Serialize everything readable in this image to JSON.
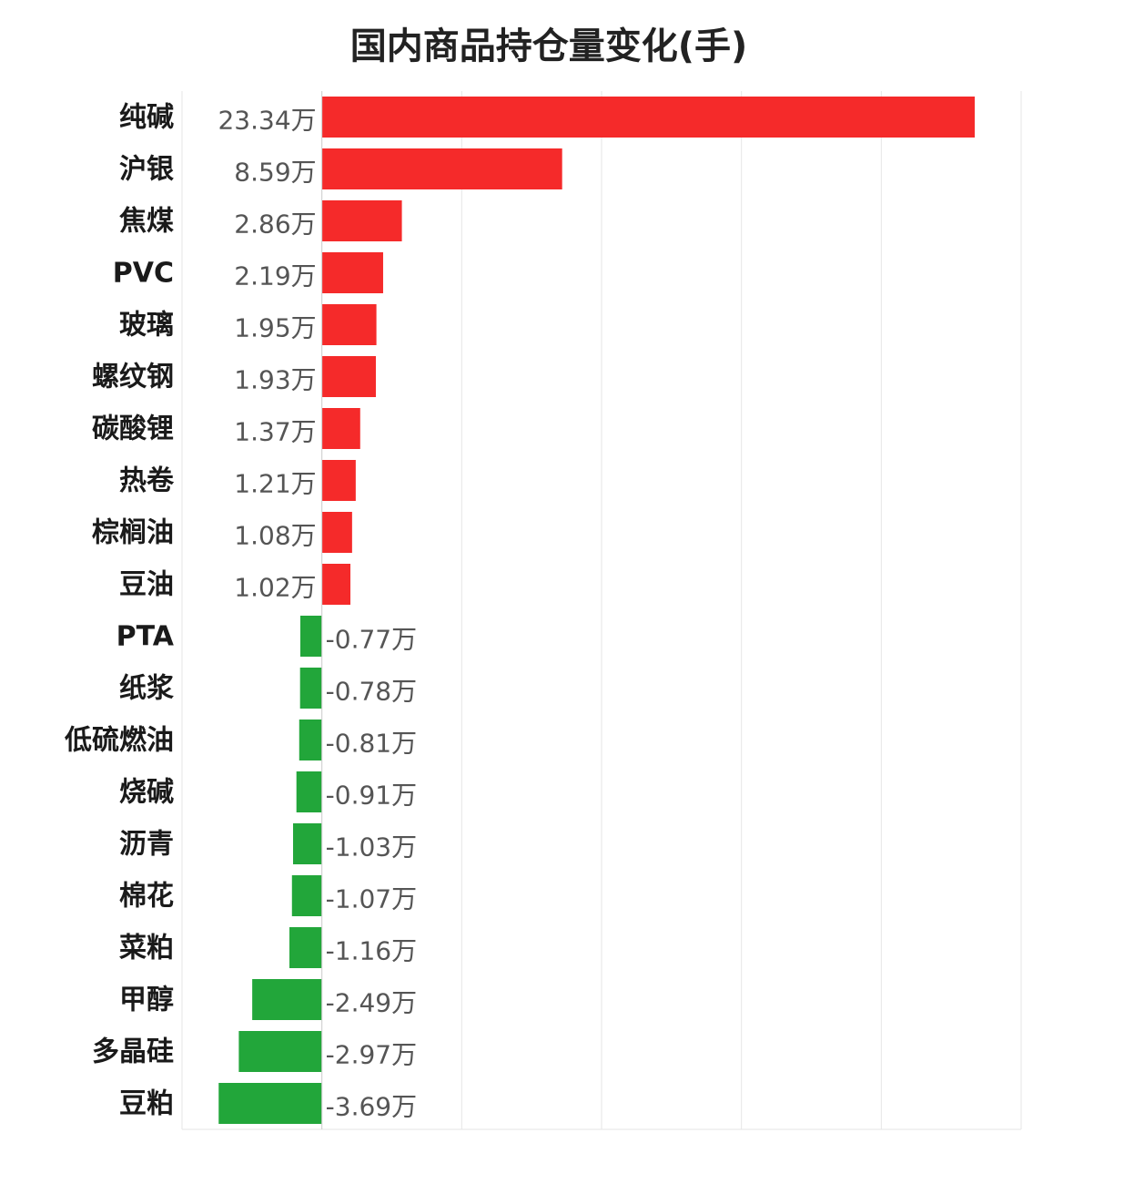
{
  "chart_data": {
    "type": "bar",
    "orientation": "horizontal",
    "title": "国内商品持仓量变化(手)",
    "unit_suffix": "万",
    "categories": [
      "纯碱",
      "沪银",
      "焦煤",
      "PVC",
      "玻璃",
      "螺纹钢",
      "碳酸锂",
      "热卷",
      "棕榈油",
      "豆油",
      "PTA",
      "纸浆",
      "低硫燃油",
      "烧碱",
      "沥青",
      "棉花",
      "菜粕",
      "甲醇",
      "多晶硅",
      "豆粕"
    ],
    "values": [
      23.34,
      8.59,
      2.86,
      2.19,
      1.95,
      1.93,
      1.37,
      1.21,
      1.08,
      1.02,
      -0.77,
      -0.78,
      -0.81,
      -0.91,
      -1.03,
      -1.07,
      -1.16,
      -2.49,
      -2.97,
      -3.69
    ],
    "value_labels": [
      "23.34万",
      "8.59万",
      "2.86万",
      "2.19万",
      "1.95万",
      "1.93万",
      "1.37万",
      "1.21万",
      "1.08万",
      "1.02万",
      "-0.77万",
      "-0.78万",
      "-0.81万",
      "-0.91万",
      "-1.03万",
      "-1.07万",
      "-1.16万",
      "-2.49万",
      "-2.97万",
      "-3.69万"
    ],
    "xlim": [
      -5,
      25
    ],
    "grid": true,
    "legend": "none",
    "colors": {
      "positive": "#f52a2a",
      "negative": "#22a63a",
      "grid": "#e6e6e6"
    }
  }
}
